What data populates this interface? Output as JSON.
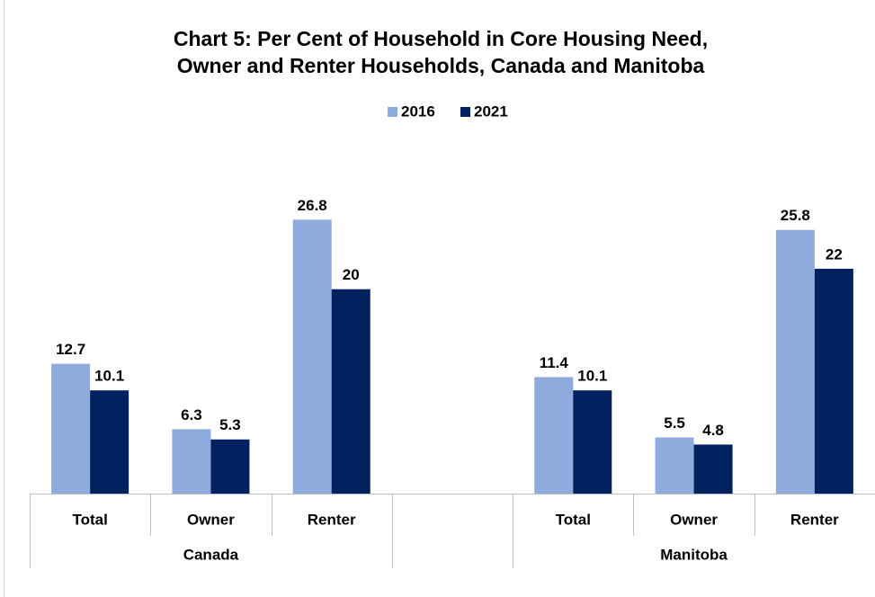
{
  "chart_data": {
    "type": "bar",
    "title": "Chart 5: Per Cent of Household in Core Housing Need,",
    "subtitle": "Owner and Renter Households, Canada and Manitoba",
    "categories": [
      "Total",
      "Owner",
      "Renter",
      null,
      "Total",
      "Owner",
      "Renter"
    ],
    "group_labels": [
      "Canada",
      "Manitoba"
    ],
    "series": [
      {
        "name": "2016",
        "color": "#8faadc",
        "values": [
          12.7,
          6.3,
          26.8,
          null,
          11.4,
          5.5,
          25.8
        ]
      },
      {
        "name": "2021",
        "color": "#002060",
        "values": [
          10.1,
          5.3,
          20,
          null,
          10.1,
          4.8,
          22
        ]
      }
    ],
    "ylim": [
      0,
      30
    ],
    "legend": "top"
  }
}
